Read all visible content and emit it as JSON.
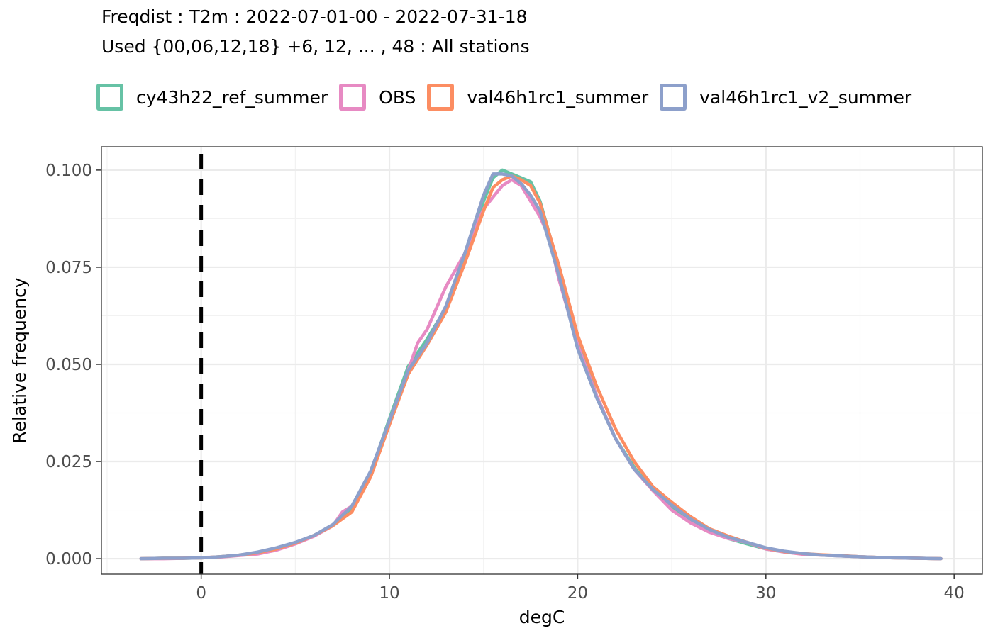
{
  "chart_data": {
    "type": "line",
    "title": "Freqdist : T2m : 2022-07-01-00 - 2022-07-31-18",
    "subtitle": "Used {00,06,12,18} +6, 12, ... , 48 : All stations",
    "xlabel": "degC",
    "ylabel": "Relative frequency",
    "xlim": [
      -5.3,
      41.5
    ],
    "ylim": [
      -0.004,
      0.106
    ],
    "x_ticks": [
      0,
      10,
      20,
      30,
      40
    ],
    "x_tick_labels": [
      "0",
      "10",
      "20",
      "30",
      "40"
    ],
    "y_ticks": [
      0.0,
      0.025,
      0.05,
      0.075,
      0.1
    ],
    "y_tick_labels": [
      "0.000",
      "0.025",
      "0.050",
      "0.075",
      "0.100"
    ],
    "grid": true,
    "legend_position": "top",
    "reference_line": {
      "x": 0,
      "style": "dashed",
      "color": "#000000"
    },
    "series": [
      {
        "name": "cy43h22_ref_summer",
        "color": "#66C2A5",
        "x": [
          -3.2,
          -2,
          -1,
          0,
          1,
          2,
          3,
          4,
          5,
          6,
          7,
          8,
          9,
          10,
          11,
          12,
          13,
          14,
          15,
          15.5,
          16,
          16.5,
          17,
          17.5,
          18,
          19,
          20,
          21,
          22,
          23,
          24,
          25,
          26,
          27,
          28,
          29,
          30,
          31,
          32,
          33,
          34,
          35,
          36,
          37,
          38,
          39.3
        ],
        "y": [
          0.0,
          0.0001,
          0.0001,
          0.0002,
          0.0005,
          0.0009,
          0.0015,
          0.0025,
          0.004,
          0.006,
          0.0085,
          0.013,
          0.022,
          0.036,
          0.0495,
          0.0565,
          0.0645,
          0.077,
          0.092,
          0.098,
          0.1,
          0.099,
          0.098,
          0.097,
          0.092,
          0.075,
          0.056,
          0.042,
          0.031,
          0.0235,
          0.0175,
          0.013,
          0.0098,
          0.0072,
          0.0052,
          0.0038,
          0.0025,
          0.0017,
          0.0012,
          0.0009,
          0.0007,
          0.0005,
          0.0003,
          0.0002,
          0.0001,
          0.0
        ]
      },
      {
        "name": "OBS",
        "color": "#E78AC3",
        "x": [
          -3.2,
          -2,
          -1,
          0,
          1,
          2,
          3,
          4,
          5,
          6,
          7,
          7.5,
          8,
          9,
          10,
          11,
          11.5,
          12,
          13,
          14,
          15,
          15.5,
          16,
          16.5,
          17,
          17.5,
          18,
          18.5,
          19,
          20,
          21,
          22,
          23,
          24,
          25,
          26,
          27,
          28,
          29,
          30,
          31,
          32,
          33,
          34,
          35,
          36,
          37,
          38,
          39.3
        ],
        "y": [
          0.0,
          0.0,
          0.0001,
          0.0003,
          0.0004,
          0.0008,
          0.0012,
          0.0022,
          0.0038,
          0.0058,
          0.0085,
          0.012,
          0.0135,
          0.0215,
          0.0345,
          0.0485,
          0.0555,
          0.059,
          0.07,
          0.0785,
          0.09,
          0.093,
          0.096,
          0.0975,
          0.096,
          0.092,
          0.088,
          0.0825,
          0.072,
          0.055,
          0.042,
          0.031,
          0.023,
          0.0175,
          0.0125,
          0.0092,
          0.0068,
          0.0052,
          0.0042,
          0.0025,
          0.0017,
          0.0011,
          0.0009,
          0.0007,
          0.0005,
          0.0003,
          0.0002,
          0.0001,
          0.0
        ]
      },
      {
        "name": "val46h1rc1_summer",
        "color": "#FC8D62",
        "x": [
          -3.2,
          -2,
          -1,
          0,
          1,
          2,
          3,
          4,
          5,
          6,
          7,
          8,
          9,
          10,
          11,
          12,
          13,
          14,
          15,
          15.5,
          16,
          16.5,
          17,
          17.5,
          18,
          19,
          20,
          21,
          22,
          23,
          24,
          25,
          26,
          27,
          28,
          29,
          30,
          31,
          32,
          33,
          34,
          35,
          36,
          37,
          38,
          39.3
        ],
        "y": [
          0.0,
          0.0001,
          0.0001,
          0.0002,
          0.0005,
          0.0009,
          0.0015,
          0.0025,
          0.004,
          0.006,
          0.0085,
          0.012,
          0.021,
          0.0345,
          0.0475,
          0.055,
          0.0635,
          0.076,
          0.0895,
          0.0955,
          0.0975,
          0.0985,
          0.0975,
          0.096,
          0.0915,
          0.0755,
          0.0575,
          0.0445,
          0.0335,
          0.025,
          0.0185,
          0.0145,
          0.0108,
          0.0077,
          0.0058,
          0.0042,
          0.0027,
          0.0018,
          0.0013,
          0.001,
          0.0008,
          0.0005,
          0.0003,
          0.0002,
          0.0001,
          0.0
        ]
      },
      {
        "name": "val46h1rc1_v2_summer",
        "color": "#8DA0CB",
        "x": [
          -3.2,
          -2,
          -1,
          0,
          1,
          2,
          3,
          4,
          5,
          6,
          7,
          8,
          9,
          10,
          11,
          12,
          13,
          14,
          15,
          15.5,
          16,
          16.5,
          17,
          17.5,
          18,
          19,
          20,
          21,
          22,
          23,
          24,
          25,
          26,
          27,
          28,
          29,
          30,
          31,
          32,
          33,
          34,
          35,
          36,
          37,
          38,
          39.3
        ],
        "y": [
          0.0,
          0.0001,
          0.0001,
          0.0002,
          0.0005,
          0.0009,
          0.0017,
          0.0028,
          0.0042,
          0.006,
          0.0088,
          0.0135,
          0.0225,
          0.0355,
          0.0485,
          0.0555,
          0.065,
          0.0785,
          0.0935,
          0.099,
          0.099,
          0.0985,
          0.0965,
          0.0935,
          0.0895,
          0.073,
          0.054,
          0.0415,
          0.031,
          0.023,
          0.0178,
          0.0138,
          0.0102,
          0.0075,
          0.0055,
          0.0042,
          0.0028,
          0.0019,
          0.0013,
          0.0009,
          0.0007,
          0.0005,
          0.0003,
          0.0002,
          0.0001,
          0.0
        ]
      }
    ]
  }
}
